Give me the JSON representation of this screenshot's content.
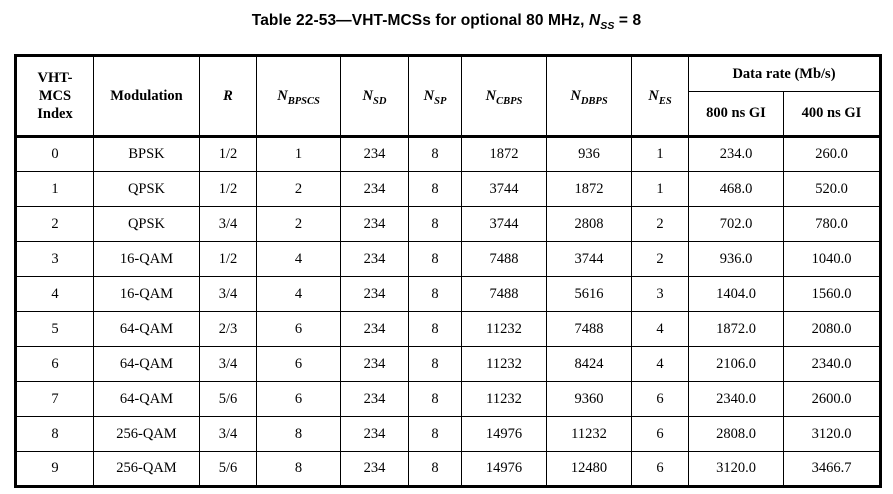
{
  "title": {
    "text_before": "Table 22-53—VHT-MCSs for optional 80 MHz, ",
    "var_symbol": "N",
    "var_subscript": "SS",
    "text_after": " = 8"
  },
  "table": {
    "columns": [
      {
        "id": "vht-mcs-index",
        "type": "plain",
        "label": "VHT-\nMCS\nIndex"
      },
      {
        "id": "modulation",
        "type": "plain",
        "label": "Modulation"
      },
      {
        "id": "r",
        "type": "var",
        "base": "R",
        "sub": ""
      },
      {
        "id": "n-bpscs",
        "type": "var",
        "base": "N",
        "sub": "BPSCS"
      },
      {
        "id": "n-sd",
        "type": "var",
        "base": "N",
        "sub": "SD"
      },
      {
        "id": "n-sp",
        "type": "var",
        "base": "N",
        "sub": "SP"
      },
      {
        "id": "n-cbps",
        "type": "var",
        "base": "N",
        "sub": "CBPS"
      },
      {
        "id": "n-dbps",
        "type": "var",
        "base": "N",
        "sub": "DBPS"
      },
      {
        "id": "n-es",
        "type": "var",
        "base": "N",
        "sub": "ES"
      }
    ],
    "data_rate_group": {
      "label": "Data rate (Mb/s)",
      "sub_columns": [
        {
          "id": "gi-800",
          "label": "800 ns GI"
        },
        {
          "id": "gi-400",
          "label": "400 ns GI"
        }
      ]
    },
    "rows": [
      [
        "0",
        "BPSK",
        "1/2",
        "1",
        "234",
        "8",
        "1872",
        "936",
        "1",
        "234.0",
        "260.0"
      ],
      [
        "1",
        "QPSK",
        "1/2",
        "2",
        "234",
        "8",
        "3744",
        "1872",
        "1",
        "468.0",
        "520.0"
      ],
      [
        "2",
        "QPSK",
        "3/4",
        "2",
        "234",
        "8",
        "3744",
        "2808",
        "2",
        "702.0",
        "780.0"
      ],
      [
        "3",
        "16-QAM",
        "1/2",
        "4",
        "234",
        "8",
        "7488",
        "3744",
        "2",
        "936.0",
        "1040.0"
      ],
      [
        "4",
        "16-QAM",
        "3/4",
        "4",
        "234",
        "8",
        "7488",
        "5616",
        "3",
        "1404.0",
        "1560.0"
      ],
      [
        "5",
        "64-QAM",
        "2/3",
        "6",
        "234",
        "8",
        "11232",
        "7488",
        "4",
        "1872.0",
        "2080.0"
      ],
      [
        "6",
        "64-QAM",
        "3/4",
        "6",
        "234",
        "8",
        "11232",
        "8424",
        "4",
        "2106.0",
        "2340.0"
      ],
      [
        "7",
        "64-QAM",
        "5/6",
        "6",
        "234",
        "8",
        "11232",
        "9360",
        "6",
        "2340.0",
        "2600.0"
      ],
      [
        "8",
        "256-QAM",
        "3/4",
        "8",
        "234",
        "8",
        "14976",
        "11232",
        "6",
        "2808.0",
        "3120.0"
      ],
      [
        "9",
        "256-QAM",
        "5/6",
        "8",
        "234",
        "8",
        "14976",
        "12480",
        "6",
        "3120.0",
        "3466.7"
      ]
    ]
  }
}
